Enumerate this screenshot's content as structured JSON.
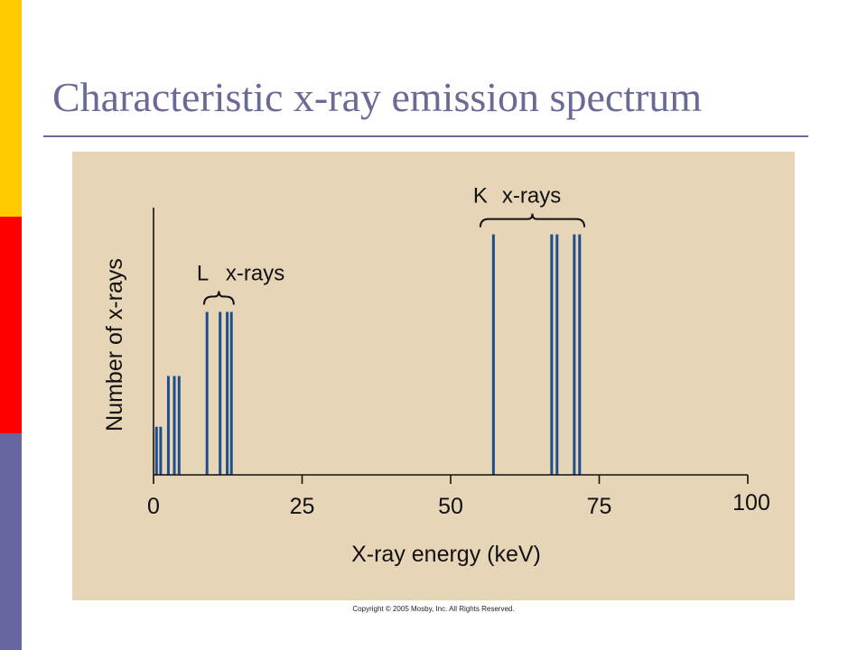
{
  "slide": {
    "title": "Characteristic x-ray emission spectrum",
    "copyright": "Copyright © 2005 Mosby, Inc. All Rights Reserved."
  },
  "colors": {
    "accent_top": "#FFCC00",
    "accent_middle": "#FF0000",
    "accent_bottom": "#6666A0",
    "title_text": "#6A6A96",
    "title_rule": "#6A6A96",
    "panel_background": "#E6D5B6",
    "axis": "#111111",
    "line": "#1F4E8C"
  },
  "chart_data": {
    "type": "bar",
    "title": "",
    "xlabel": "X-ray energy (keV)",
    "ylabel": "Number of x-rays",
    "xlim": [
      0,
      100
    ],
    "ylim": [
      0,
      100
    ],
    "xticks": [
      0,
      25,
      50,
      75,
      100
    ],
    "xtick_labels": [
      "0",
      "25",
      "50",
      "75",
      "100"
    ],
    "y_tick_labels_shown": false,
    "grid": false,
    "lines": [
      {
        "x": 0.5,
        "y": 18
      },
      {
        "x": 1.2,
        "y": 18
      },
      {
        "x": 2.5,
        "y": 37
      },
      {
        "x": 3.5,
        "y": 37
      },
      {
        "x": 4.3,
        "y": 37
      },
      {
        "x": 9.0,
        "y": 61
      },
      {
        "x": 11.2,
        "y": 61
      },
      {
        "x": 12.4,
        "y": 61
      },
      {
        "x": 13.1,
        "y": 61
      },
      {
        "x": 57.2,
        "y": 90
      },
      {
        "x": 67.0,
        "y": 90
      },
      {
        "x": 67.9,
        "y": 90
      },
      {
        "x": 70.8,
        "y": 90
      },
      {
        "x": 71.7,
        "y": 90
      }
    ],
    "annotations": [
      {
        "letter": "L",
        "text": "x-rays",
        "x_range": [
          8.5,
          13.5
        ]
      },
      {
        "letter": "K",
        "text": "x-rays",
        "x_range": [
          55,
          72.5
        ]
      }
    ]
  }
}
